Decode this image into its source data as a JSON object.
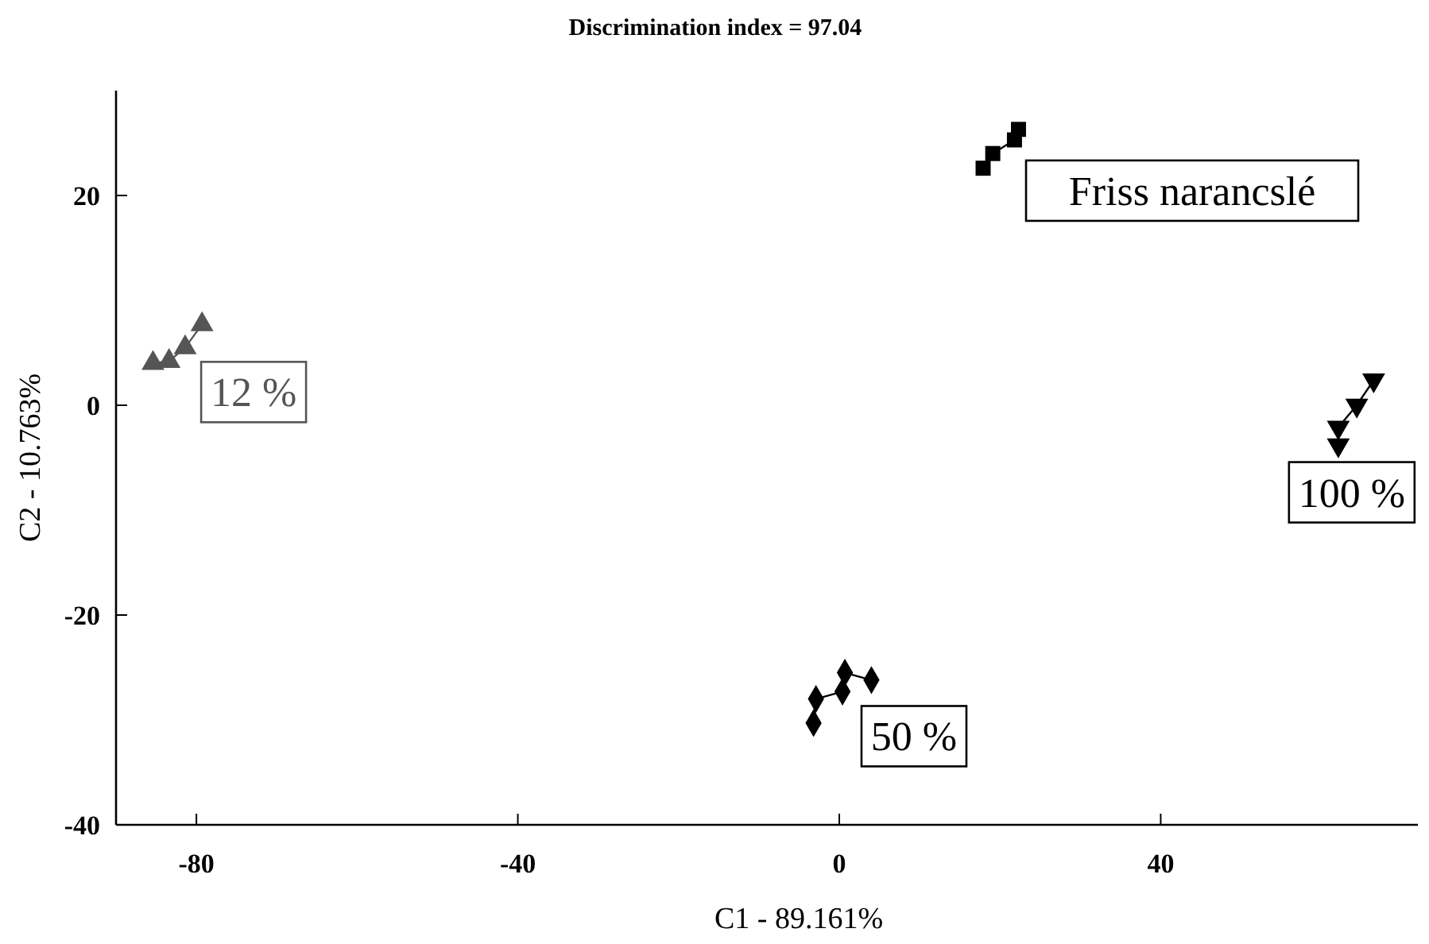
{
  "chart_data": {
    "type": "line",
    "title": "Discrimination index = 97.04",
    "xlabel": "C1 - 89.161%",
    "ylabel": "C2 - 10.763%",
    "xlim": [
      -90,
      72
    ],
    "ylim": [
      -40,
      30
    ],
    "xticks": [
      -80,
      -40,
      0,
      40
    ],
    "yticks": [
      -40,
      -20,
      0,
      20
    ],
    "series": [
      {
        "name": "12 %",
        "color": "#555555",
        "marker": "triangle",
        "x": [
          -85.4,
          -83.4,
          -81.4,
          -79.3
        ],
        "values": [
          4.0,
          4.2,
          5.5,
          7.7
        ]
      },
      {
        "name": "Friss narancslé",
        "color": "#000000",
        "marker": "square",
        "x": [
          17.9,
          19.1,
          21.8,
          22.3
        ],
        "values": [
          22.6,
          24.0,
          25.3,
          26.3
        ]
      },
      {
        "name": "100 %",
        "color": "#000000",
        "marker": "triangle-down",
        "x": [
          62.1,
          62.1,
          64.4,
          66.5
        ],
        "values": [
          -3.8,
          -2.1,
          0,
          2.4
        ]
      },
      {
        "name": "50 %",
        "color": "#000000",
        "marker": "diamond",
        "x": [
          -3.2,
          -2.9,
          0.4,
          0.7,
          4.0
        ],
        "values": [
          -30.3,
          -28.0,
          -27.3,
          -25.5,
          -26.2
        ]
      }
    ]
  }
}
